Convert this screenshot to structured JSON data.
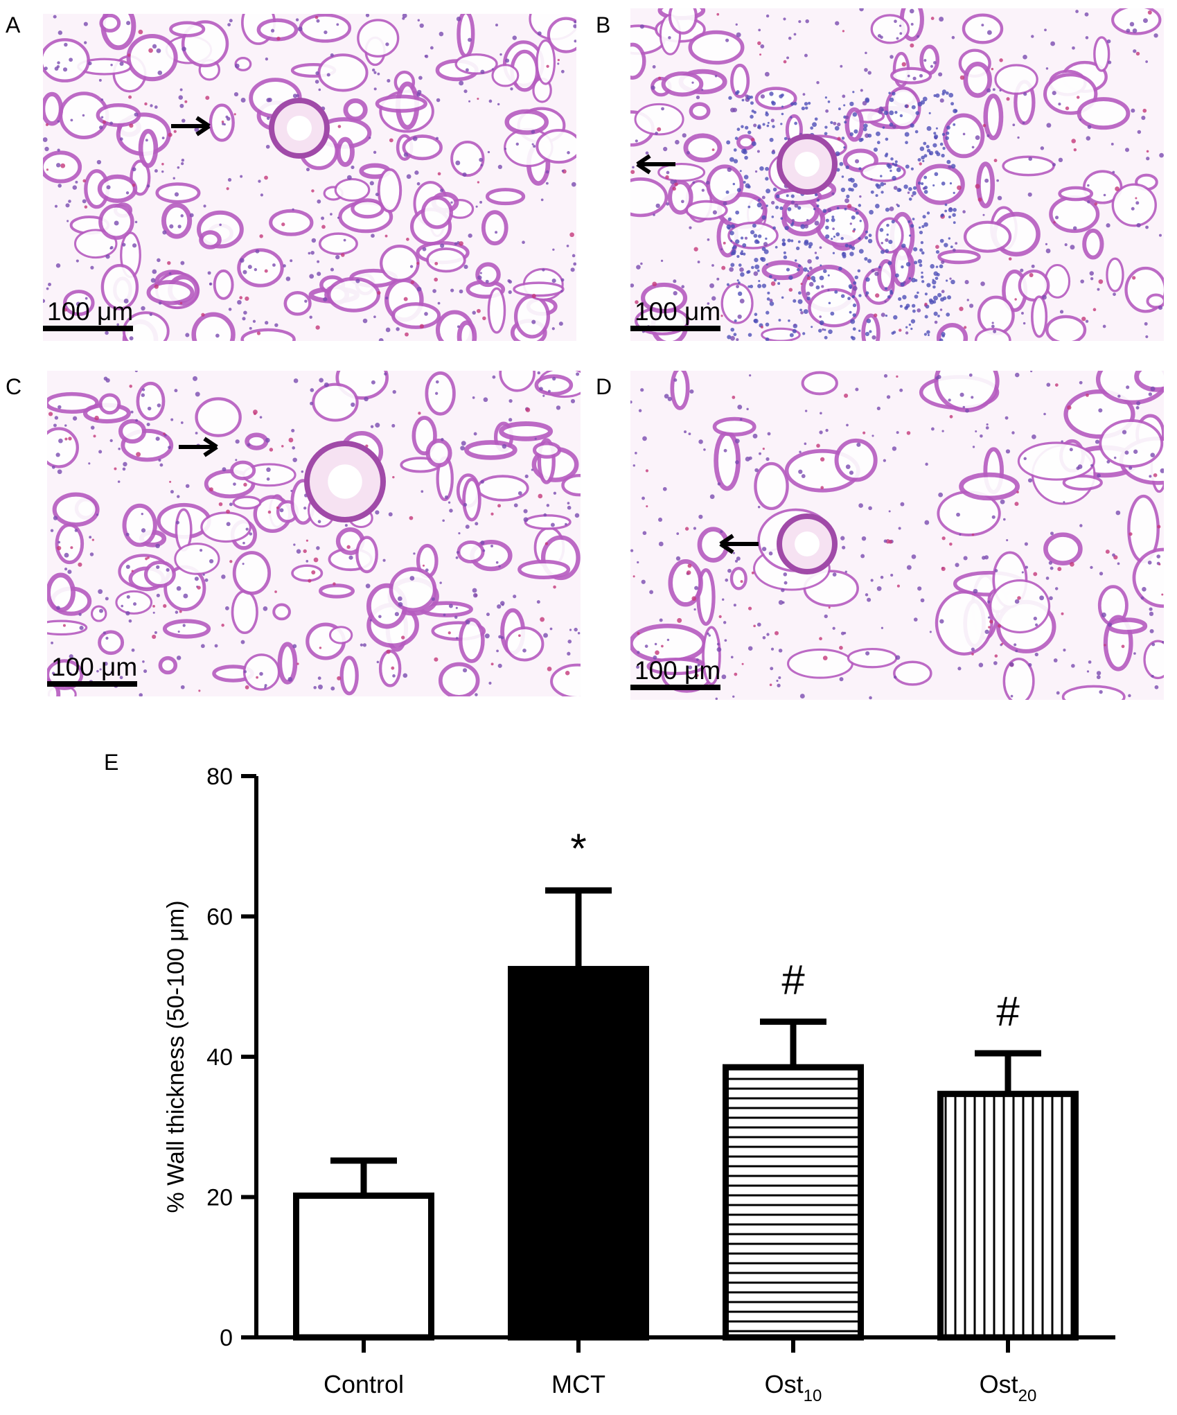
{
  "panels": [
    {
      "label": "A",
      "scalebar": "100 μm",
      "arrow": "right",
      "tissue": "normal"
    },
    {
      "label": "B",
      "scalebar": "100 μm",
      "arrow": "left",
      "tissue": "inflamed"
    },
    {
      "label": "C",
      "scalebar": "100 μm",
      "arrow": "right",
      "tissue": "thickened"
    },
    {
      "label": "D",
      "scalebar": "100 μm",
      "arrow": "left",
      "tissue": "open"
    }
  ],
  "chart_label": "E",
  "colors": {
    "tissue_bg": "#f4dced",
    "tissue_stroke": "#b65cc0",
    "infiltrate": "#4f4fb8",
    "bar_stroke": "#000000"
  },
  "chart_data": {
    "type": "bar",
    "categories": [
      {
        "base": "Control",
        "sub": ""
      },
      {
        "base": "MCT",
        "sub": ""
      },
      {
        "base": "Ost",
        "sub": "10"
      },
      {
        "base": "Ost",
        "sub": "20"
      }
    ],
    "values": [
      20.2,
      52.5,
      38.5,
      34.7
    ],
    "errors": [
      5.0,
      11.2,
      6.5,
      5.8
    ],
    "fills": [
      "white",
      "black",
      "horizontal-lines",
      "vertical-lines"
    ],
    "annotations": [
      "",
      "*",
      "#",
      "#"
    ],
    "ylabel": "% Wall thickness (50-100 μm)",
    "ylim": [
      0,
      80
    ],
    "yticks": [
      0,
      20,
      40,
      60,
      80
    ],
    "grid": false
  }
}
